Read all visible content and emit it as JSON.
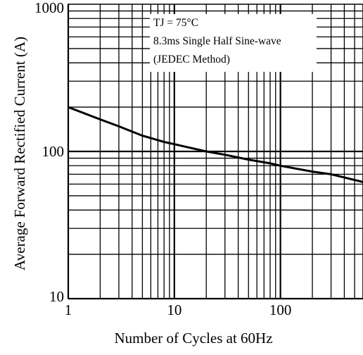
{
  "chart_data": {
    "type": "line",
    "title": "",
    "xlabel": "Number of Cycles at 60Hz",
    "ylabel": "Average Forward Rectified Current (A)",
    "xscale": "log",
    "yscale": "log",
    "xlim": [
      1,
      600
    ],
    "ylim": [
      10,
      1000
    ],
    "x_ticks": [
      {
        "value": 1,
        "label": "1"
      },
      {
        "value": 10,
        "label": "10"
      },
      {
        "value": 100,
        "label": "100"
      }
    ],
    "y_ticks": [
      {
        "value": 10,
        "label": "10"
      },
      {
        "value": 100,
        "label": "100"
      },
      {
        "value": 1000,
        "label": "1000"
      }
    ],
    "grid": true,
    "legend": "none",
    "annotation": [
      "TJ = 75°C",
      "8.3ms Single Half Sine-wave",
      "(JEDEC Method)"
    ],
    "series": [
      {
        "name": "",
        "x": [
          1,
          2,
          3,
          5,
          8,
          10,
          20,
          30,
          50,
          80,
          100,
          200,
          300,
          600
        ],
        "y": [
          200,
          165,
          148,
          128,
          116,
          112,
          100,
          95,
          88,
          83,
          80,
          73,
          70,
          62
        ]
      }
    ],
    "colors": {
      "line": "#000000",
      "grid": "#000000",
      "background": "#ffffff"
    }
  }
}
